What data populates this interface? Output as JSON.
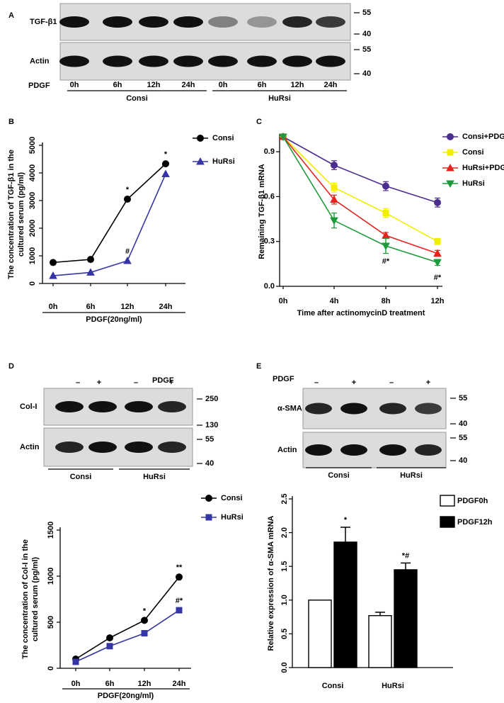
{
  "blots": [
    {
      "panel": "A",
      "rows": [
        {
          "label": "TGF-β1",
          "markers": [
            55,
            40
          ]
        },
        {
          "label": "Actin",
          "markers": [
            55,
            40
          ]
        }
      ],
      "treatment": "PDGF",
      "lanes": [
        "0h",
        "6h",
        "12h",
        "24h",
        "0h",
        "6h",
        "12h",
        "24h"
      ],
      "groups": [
        "Consi",
        "HuRsi"
      ]
    },
    {
      "panel": "D",
      "rows": [
        {
          "label": "Col-I",
          "markers": [
            250,
            130
          ]
        },
        {
          "label": "Actin",
          "markers": [
            55,
            40
          ]
        }
      ],
      "treatment": "PDGF",
      "lanes": [
        "–",
        "+",
        "–",
        "+"
      ],
      "groups": [
        "Consi",
        "HuRsi"
      ]
    },
    {
      "panel": "E",
      "rows": [
        {
          "label": "α-SMA",
          "markers": [
            55,
            40
          ]
        },
        {
          "label": "Actin",
          "markers": [
            55,
            40
          ]
        }
      ],
      "treatment": "PDGF",
      "lanes": [
        "–",
        "+",
        "–",
        "+"
      ],
      "groups": [
        "Consi",
        "HuRsi"
      ]
    }
  ],
  "chart_data": [
    {
      "panel": "B",
      "type": "line",
      "categories": [
        "0h",
        "6h",
        "12h",
        "24h"
      ],
      "xlabel": "PDGF(20ng/ml)",
      "ylabel": [
        "The concentration of TGF-β1 in the",
        "cultured  serum (pg/ml)"
      ],
      "ylim": [
        0,
        5000
      ],
      "yticks": [
        0,
        1000,
        2000,
        3000,
        4000,
        5000
      ],
      "series": [
        {
          "name": "Consi",
          "color": "#000000",
          "marker": "circle",
          "values": [
            760,
            870,
            3050,
            4330
          ],
          "annotations": [
            null,
            null,
            "*",
            "*"
          ]
        },
        {
          "name": "HuRsi",
          "color": "#3535a5",
          "marker": "triangle",
          "values": [
            280,
            400,
            820,
            3960
          ],
          "annotations": [
            null,
            null,
            "#",
            "#*"
          ]
        }
      ]
    },
    {
      "panel": "C",
      "type": "line",
      "categories": [
        "0h",
        "4h",
        "8h",
        "12h"
      ],
      "xlabel": "Time after actinomycinD treatment",
      "ylabel": [
        "Remaining  TGF-β1 mRNA"
      ],
      "ylim": [
        0,
        1.0
      ],
      "yticks": [
        {
          "value": 0,
          "label": "0.0"
        },
        0.3,
        0.6,
        0.9
      ],
      "series": [
        {
          "name": "Consi+PDGF",
          "color": "#4b2d8f",
          "marker": "circle",
          "values": [
            1.0,
            0.81,
            0.67,
            0.56
          ],
          "errors": [
            0,
            0.03,
            0.03,
            0.03
          ]
        },
        {
          "name": "Consi",
          "color": "#f2ee00",
          "marker": "square",
          "values": [
            1.0,
            0.66,
            0.49,
            0.3
          ],
          "errors": [
            0,
            0.03,
            0.03,
            0.02
          ]
        },
        {
          "name": "HuRsi+PDGF",
          "color": "#e52420",
          "marker": "triangle",
          "values": [
            1.0,
            0.58,
            0.34,
            0.22
          ],
          "errors": [
            0,
            0.03,
            0.02,
            0.02
          ]
        },
        {
          "name": "HuRsi",
          "color": "#1f9a3a",
          "marker": "triangle-down",
          "values": [
            1.0,
            0.44,
            0.27,
            0.16
          ],
          "errors": [
            0,
            0.05,
            0.05,
            0.02
          ],
          "annotations": [
            null,
            null,
            "#*",
            "#*"
          ]
        }
      ]
    },
    {
      "type": "line",
      "categories": [
        "0h",
        "6h",
        "12h",
        "24h"
      ],
      "xlabel": "PDGF(20ng/ml)",
      "ylabel": [
        "The concentration of Col-I in the",
        "cultured serum (pg/ml)"
      ],
      "ylim": [
        0,
        1500
      ],
      "yticks": [
        0,
        500,
        1000,
        1500
      ],
      "series": [
        {
          "name": "Consi",
          "color": "#000000",
          "marker": "circle",
          "values": [
            100,
            330,
            520,
            990
          ],
          "annotations": [
            null,
            null,
            "*",
            "**"
          ]
        },
        {
          "name": "HuRsi",
          "color": "#3535a5",
          "marker": "square",
          "values": [
            70,
            240,
            380,
            630
          ],
          "annotations": [
            null,
            null,
            null,
            "#*"
          ]
        }
      ]
    },
    {
      "type": "bar",
      "categories": [
        "Consi",
        "HuRsi"
      ],
      "ylabel": [
        "Relative expression of α-SMA mRNA"
      ],
      "ylim": [
        0,
        2.5
      ],
      "yticks": [
        {
          "value": 0,
          "label": "0.0"
        },
        0.5,
        {
          "value": 1,
          "label": "1.0"
        },
        1.5,
        {
          "value": 2,
          "label": "2.0"
        },
        2.5
      ],
      "series": [
        {
          "name": "PDGF0h",
          "color": "#ffffff",
          "values": [
            1.0,
            0.77
          ],
          "errors": [
            0,
            0.05
          ]
        },
        {
          "name": "PDGF12h",
          "color": "#000000",
          "values": [
            1.86,
            1.45
          ],
          "errors": [
            0.22,
            0.1
          ],
          "annotations": [
            "*",
            "*#"
          ]
        }
      ]
    }
  ]
}
